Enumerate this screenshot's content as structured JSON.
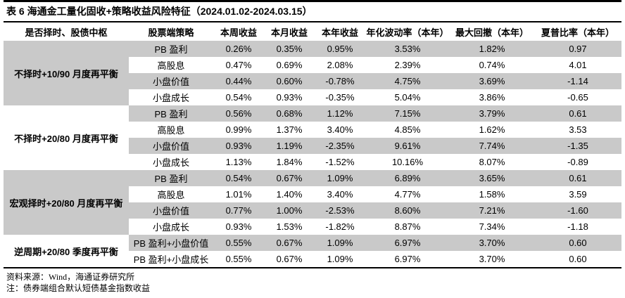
{
  "title": "表 6  海通金工量化固收+策略收益风险特征（2024.01.02-2024.03.15）",
  "colors": {
    "stripe_gray": "#c9c9c9",
    "rule_black": "#000000",
    "background": "#ffffff"
  },
  "table": {
    "headers": [
      "是否择时、股债中枢",
      "股票端策略",
      "本周收益",
      "本月收益",
      "本年收益",
      "年化波动率（本年）",
      "最大回撤（本年）",
      "夏普比率（本年）"
    ],
    "groups": [
      {
        "name": "不择时+10/90 月度再平衡",
        "shade": "gray",
        "rows": [
          {
            "strategy": "PB 盈利",
            "values": [
              "0.26%",
              "0.35%",
              "0.95%",
              "3.53%",
              "1.82%",
              "0.97"
            ]
          },
          {
            "strategy": "高股息",
            "values": [
              "0.47%",
              "0.69%",
              "2.08%",
              "2.39%",
              "0.74%",
              "4.01"
            ]
          },
          {
            "strategy": "小盘价值",
            "values": [
              "0.44%",
              "0.60%",
              "-0.78%",
              "4.75%",
              "3.69%",
              "-1.14"
            ]
          },
          {
            "strategy": "小盘成长",
            "values": [
              "0.54%",
              "0.93%",
              "-0.35%",
              "5.04%",
              "3.86%",
              "-0.65"
            ]
          }
        ]
      },
      {
        "name": "不择时+20/80 月度再平衡",
        "shade": "white",
        "rows": [
          {
            "strategy": "PB 盈利",
            "values": [
              "0.56%",
              "0.68%",
              "1.12%",
              "7.15%",
              "3.79%",
              "0.61"
            ]
          },
          {
            "strategy": "高股息",
            "values": [
              "0.99%",
              "1.37%",
              "3.40%",
              "4.85%",
              "1.62%",
              "3.53"
            ]
          },
          {
            "strategy": "小盘价值",
            "values": [
              "0.93%",
              "1.19%",
              "-2.35%",
              "9.61%",
              "7.74%",
              "-1.35"
            ]
          },
          {
            "strategy": "小盘成长",
            "values": [
              "1.13%",
              "1.84%",
              "-1.52%",
              "10.16%",
              "8.07%",
              "-0.89"
            ]
          }
        ]
      },
      {
        "name": "宏观择时+20/80 月度再平衡",
        "shade": "gray",
        "rows": [
          {
            "strategy": "PB 盈利",
            "values": [
              "0.54%",
              "0.67%",
              "1.09%",
              "6.89%",
              "3.65%",
              "0.61"
            ]
          },
          {
            "strategy": "高股息",
            "values": [
              "1.01%",
              "1.40%",
              "3.40%",
              "4.77%",
              "1.58%",
              "3.59"
            ]
          },
          {
            "strategy": "小盘价值",
            "values": [
              "0.77%",
              "1.00%",
              "-2.53%",
              "8.60%",
              "7.21%",
              "-1.60"
            ]
          },
          {
            "strategy": "小盘成长",
            "values": [
              "0.93%",
              "1.53%",
              "-1.82%",
              "8.87%",
              "7.34%",
              "-1.18"
            ]
          }
        ]
      },
      {
        "name": "逆周期+20/80 季度再平衡",
        "shade": "white",
        "rows": [
          {
            "strategy": "PB 盈利+小盘价值",
            "values": [
              "0.55%",
              "0.67%",
              "1.09%",
              "6.97%",
              "3.70%",
              "0.60"
            ]
          },
          {
            "strategy": "PB 盈利+小盘成长",
            "values": [
              "0.55%",
              "0.67%",
              "1.09%",
              "6.97%",
              "3.70%",
              "0.60"
            ]
          }
        ]
      }
    ]
  },
  "footer": {
    "source": "资料来源：Wind，海通证券研究所",
    "note": "注：债券端组合默认短债基金指数收益"
  }
}
